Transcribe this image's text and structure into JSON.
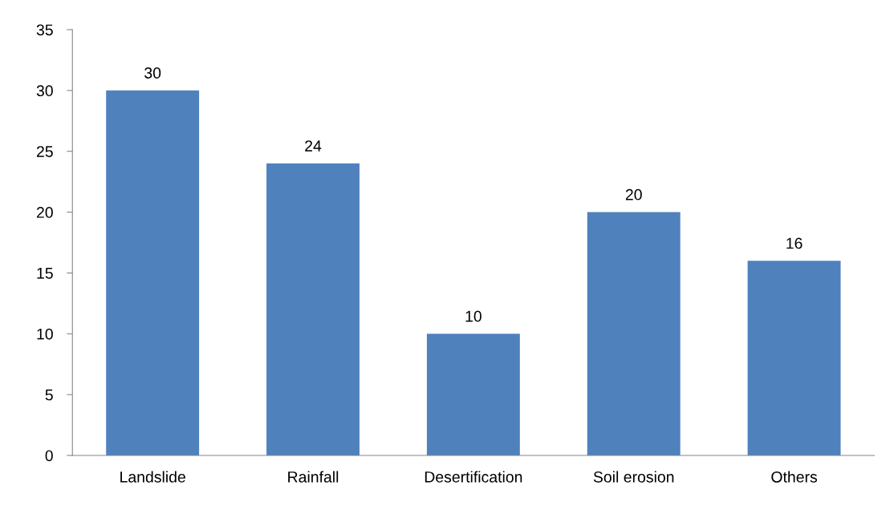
{
  "chart_data": {
    "type": "bar",
    "categories": [
      "Landslide",
      "Rainfall",
      "Desertification",
      "Soil erosion",
      "Others"
    ],
    "values": [
      30,
      24,
      10,
      20,
      16
    ],
    "color": "#4f81bd",
    "ylim": [
      0,
      35
    ],
    "yticks": [
      0,
      5,
      10,
      15,
      20,
      25,
      30,
      35
    ],
    "data_labels": true,
    "grid": false,
    "legend": false
  }
}
